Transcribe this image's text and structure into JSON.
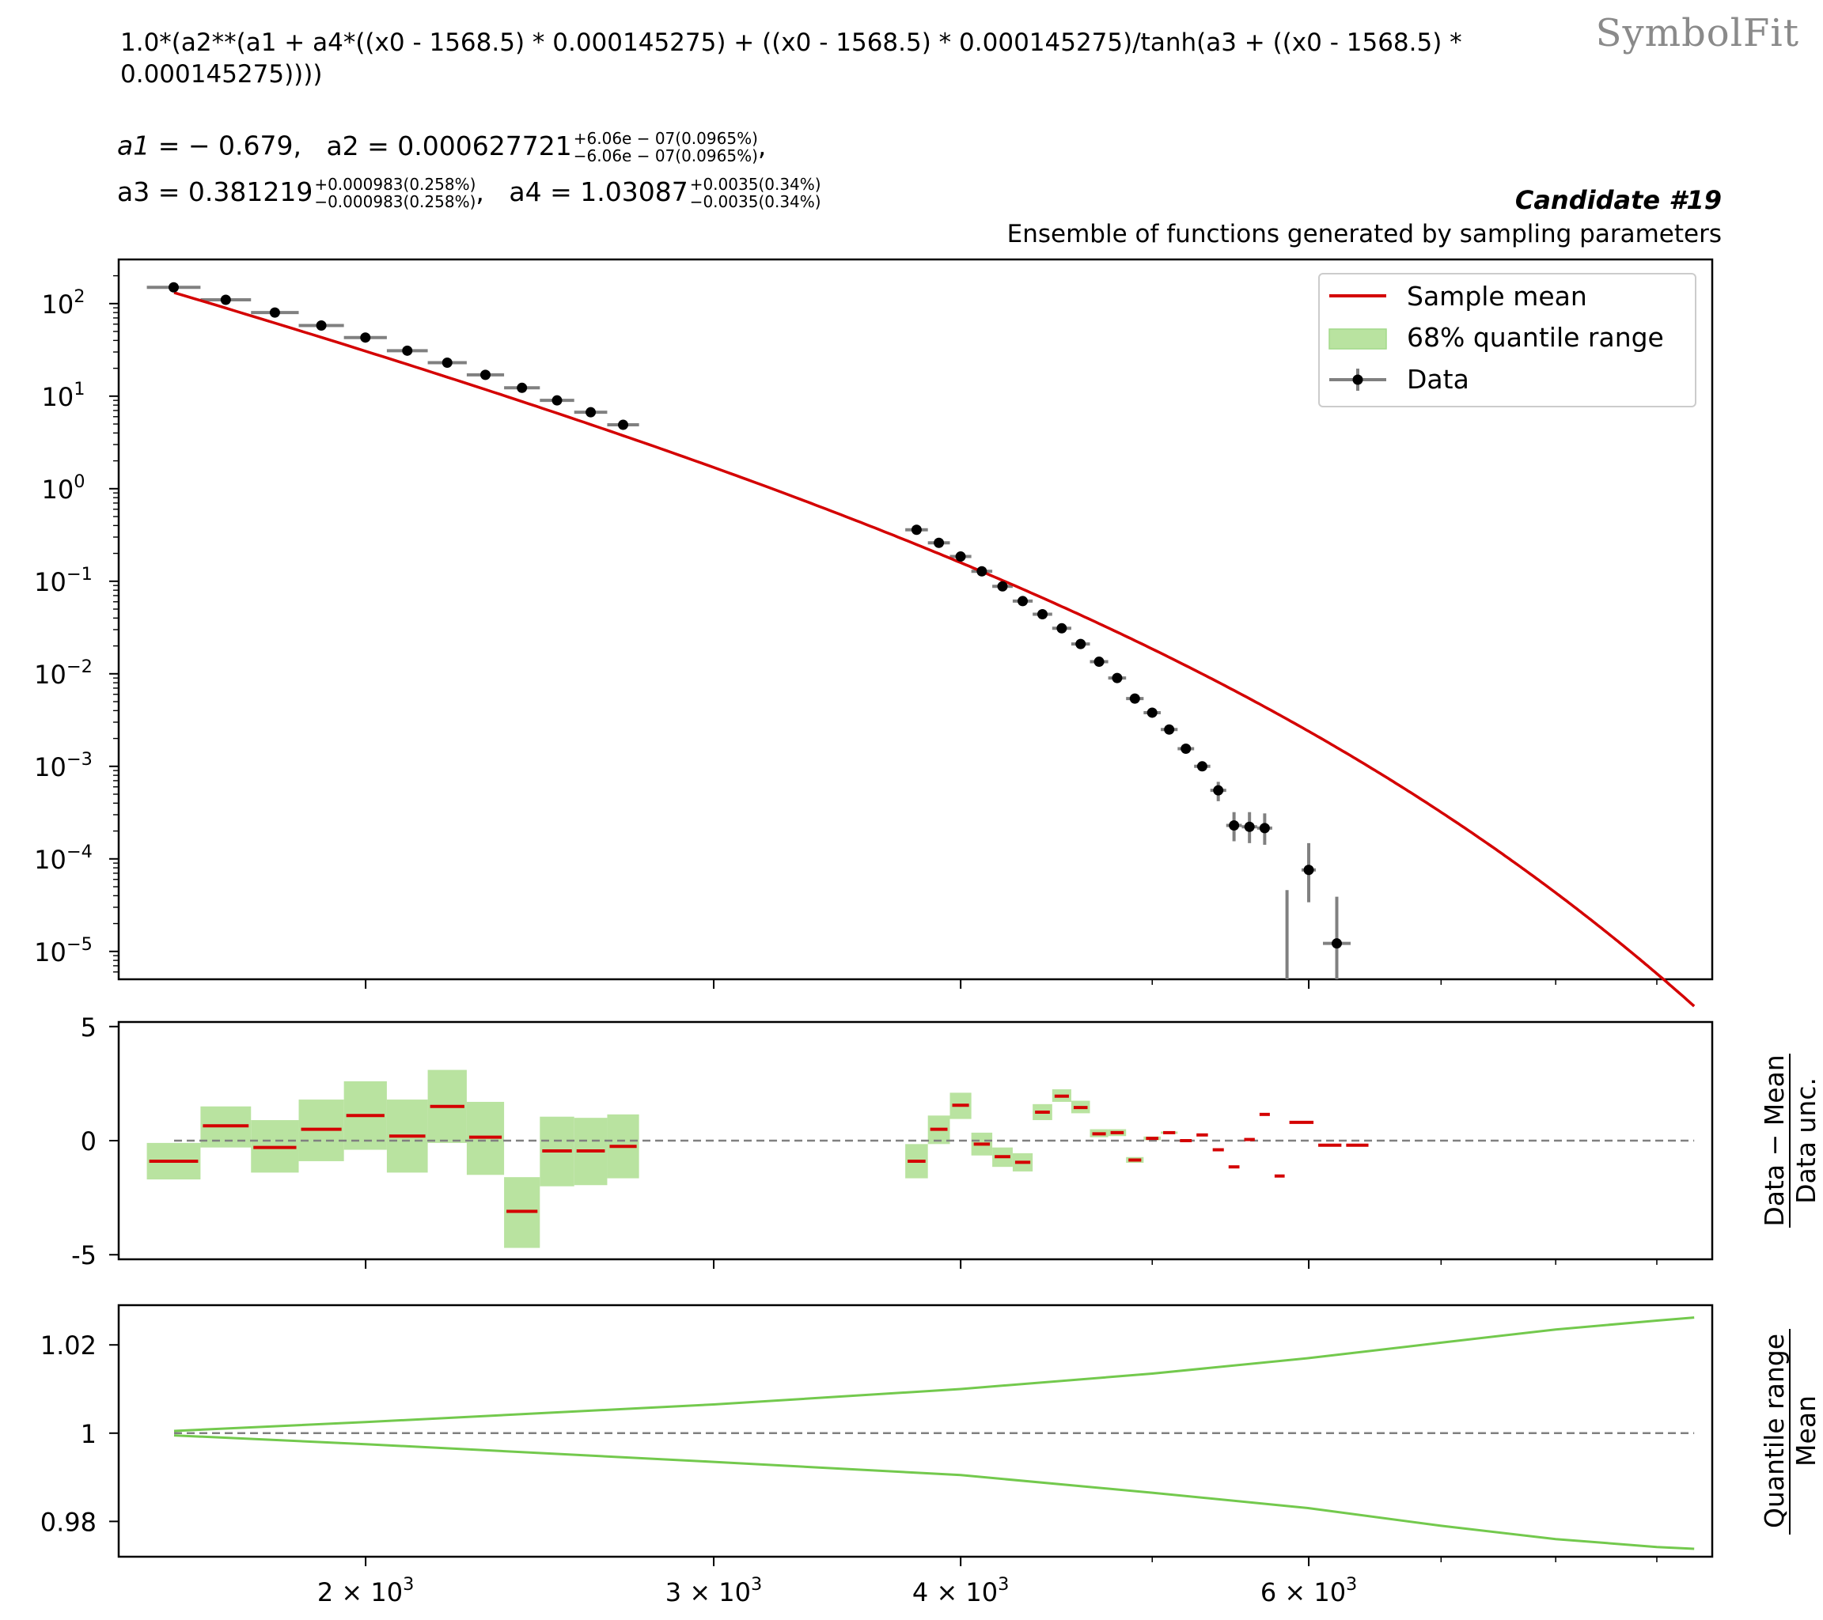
{
  "brand": "SymbolFit",
  "formula": "1.0*(a2**(a1 + a4*((x0 - 1568.5) * 0.000145275) + ((x0 - 1568.5) * 0.000145275)/tanh(a3 + ((x0 - 1568.5) * 0.000145275))))",
  "params": {
    "a1": {
      "label": "a1",
      "value": "= − 0.679,"
    },
    "a2": {
      "label": "a2",
      "value": "= 0.000627721",
      "up": "+6.06e − 07(0.0965%)",
      "down": "−6.06e − 07(0.0965%)",
      "tail": ","
    },
    "a3": {
      "label": "a3",
      "value": "= 0.381219",
      "up": "+0.000983(0.258%)",
      "down": "−0.000983(0.258%)",
      "tail": ","
    },
    "a4": {
      "label": "a4",
      "value": "= 1.03087",
      "up": "+0.0035(0.34%)",
      "down": "−0.0035(0.34%)"
    }
  },
  "candidate": "Candidate #19",
  "subtitle": "Ensemble of functions generated by sampling parameters",
  "colors": {
    "mean": "#d40000",
    "band": "#b9e3a0",
    "band_line": "#73c94d",
    "data": "#000000",
    "err": "#808080",
    "ref": "#808080"
  },
  "chart_data": [
    {
      "type": "scatter",
      "panel": "main",
      "xscale": "log",
      "yscale": "log",
      "xlim": [
        1500,
        9600
      ],
      "ylim": [
        5e-06,
        300
      ],
      "yticks": [
        100,
        10,
        1,
        0.1,
        0.01,
        0.001,
        0.0001,
        1e-05
      ],
      "ytick_labels": [
        [
          "10",
          "2"
        ],
        [
          "10",
          "1"
        ],
        [
          "10",
          "0"
        ],
        [
          "10",
          "−1"
        ],
        [
          "10",
          "−2"
        ],
        [
          "10",
          "−3"
        ],
        [
          "10",
          "−4"
        ],
        [
          "10",
          "−5"
        ]
      ],
      "legend": {
        "position": "top-right",
        "entries": [
          "Sample mean",
          "68% quantile range",
          "Data"
        ]
      },
      "fit": {
        "a1": -0.679,
        "a2": 0.000627721,
        "a3": 0.381219,
        "a4": 1.03087,
        "x_offset": 1568.5,
        "x_scale": 0.000145275,
        "x_range": [
          1600,
          9400
        ]
      },
      "data_points": [
        {
          "x0": 1550,
          "x1": 1650,
          "y": 150,
          "lo": 150,
          "hi": 150
        },
        {
          "x0": 1650,
          "x1": 1750,
          "y": 110,
          "lo": 110,
          "hi": 110
        },
        {
          "x0": 1750,
          "x1": 1850,
          "y": 80,
          "lo": 80,
          "hi": 80
        },
        {
          "x0": 1850,
          "x1": 1950,
          "y": 58,
          "lo": 58,
          "hi": 58
        },
        {
          "x0": 1950,
          "x1": 2050,
          "y": 43,
          "lo": 43,
          "hi": 43
        },
        {
          "x0": 2050,
          "x1": 2150,
          "y": 31,
          "lo": 31,
          "hi": 31
        },
        {
          "x0": 2150,
          "x1": 2250,
          "y": 23,
          "lo": 23,
          "hi": 23
        },
        {
          "x0": 2250,
          "x1": 2350,
          "y": 17,
          "lo": 17,
          "hi": 17
        },
        {
          "x0": 2350,
          "x1": 2450,
          "y": 12.3,
          "lo": 12.3,
          "hi": 12.3
        },
        {
          "x0": 2450,
          "x1": 2550,
          "y": 9.0,
          "lo": 9.0,
          "hi": 9.0
        },
        {
          "x0": 2550,
          "x1": 2650,
          "y": 6.7,
          "lo": 6.7,
          "hi": 6.7
        },
        {
          "x0": 2650,
          "x1": 2750,
          "y": 4.9,
          "lo": 4.9,
          "hi": 4.9
        },
        {
          "x0": 3750,
          "x1": 3850,
          "y": 0.36,
          "lo": 0.36,
          "hi": 0.36
        },
        {
          "x0": 3850,
          "x1": 3950,
          "y": 0.26,
          "lo": 0.26,
          "hi": 0.26
        },
        {
          "x0": 3950,
          "x1": 4050,
          "y": 0.185,
          "lo": 0.185,
          "hi": 0.185
        },
        {
          "x0": 4050,
          "x1": 4150,
          "y": 0.128,
          "lo": 0.128,
          "hi": 0.128
        },
        {
          "x0": 4150,
          "x1": 4250,
          "y": 0.088,
          "lo": 0.088,
          "hi": 0.088
        },
        {
          "x0": 4250,
          "x1": 4350,
          "y": 0.061,
          "lo": 0.061,
          "hi": 0.061
        },
        {
          "x0": 4350,
          "x1": 4450,
          "y": 0.044,
          "lo": 0.044,
          "hi": 0.044
        },
        {
          "x0": 4450,
          "x1": 4550,
          "y": 0.031,
          "lo": 0.031,
          "hi": 0.031
        },
        {
          "x0": 4550,
          "x1": 4650,
          "y": 0.021,
          "lo": 0.021,
          "hi": 0.021
        },
        {
          "x0": 4650,
          "x1": 4750,
          "y": 0.0135,
          "lo": 0.0135,
          "hi": 0.0135
        },
        {
          "x0": 4750,
          "x1": 4850,
          "y": 0.009,
          "lo": 0.009,
          "hi": 0.009
        },
        {
          "x0": 4850,
          "x1": 4950,
          "y": 0.0054,
          "lo": 0.0054,
          "hi": 0.0054
        },
        {
          "x0": 4950,
          "x1": 5050,
          "y": 0.0038,
          "lo": 0.0038,
          "hi": 0.0038
        },
        {
          "x0": 5050,
          "x1": 5150,
          "y": 0.0025,
          "lo": 0.0025,
          "hi": 0.0025
        },
        {
          "x0": 5150,
          "x1": 5250,
          "y": 0.00155,
          "lo": 0.00155,
          "hi": 0.00155
        },
        {
          "x0": 5250,
          "x1": 5350,
          "y": 0.001,
          "lo": 0.001,
          "hi": 0.001
        },
        {
          "x0": 5350,
          "x1": 5450,
          "y": 0.00055,
          "lo": 0.00042,
          "hi": 0.00068
        },
        {
          "x0": 5450,
          "x1": 5550,
          "y": 0.00023,
          "lo": 0.000155,
          "hi": 0.00032
        },
        {
          "x0": 5550,
          "x1": 5650,
          "y": 0.000222,
          "lo": 0.000148,
          "hi": 0.00032
        },
        {
          "x0": 5650,
          "x1": 5750,
          "y": 0.000215,
          "lo": 0.000142,
          "hi": 0.00031
        },
        {
          "x0": 5950,
          "x1": 6050,
          "y": 7.6e-05,
          "lo": 3.4e-05,
          "hi": 0.000148
        },
        {
          "x0": 6100,
          "x1": 6300,
          "y": 1.22e-05,
          "lo": 5e-06,
          "hi": 3.9e-05
        }
      ],
      "empty_bin_errors": [
        {
          "x": 5850,
          "hi": 4.6e-05
        }
      ]
    },
    {
      "type": "scatter",
      "panel": "residual",
      "ylabel_top": "Data − Mean",
      "ylabel_bottom": "Data unc.",
      "ylim": [
        -5.2,
        5.2
      ],
      "yticks": [
        5,
        0,
        -5
      ],
      "ytick_labels": [
        "5",
        "0",
        "-5"
      ],
      "bins": [
        {
          "x0": 1550,
          "x1": 1650,
          "mean": -0.9,
          "lo": -1.7,
          "hi": -0.1
        },
        {
          "x0": 1650,
          "x1": 1750,
          "mean": 0.65,
          "lo": -0.3,
          "hi": 1.5
        },
        {
          "x0": 1750,
          "x1": 1850,
          "mean": -0.3,
          "lo": -1.4,
          "hi": 0.9
        },
        {
          "x0": 1850,
          "x1": 1950,
          "mean": 0.5,
          "lo": -0.9,
          "hi": 1.8
        },
        {
          "x0": 1950,
          "x1": 2050,
          "mean": 1.1,
          "lo": -0.4,
          "hi": 2.6
        },
        {
          "x0": 2050,
          "x1": 2150,
          "mean": 0.2,
          "lo": -1.4,
          "hi": 1.8
        },
        {
          "x0": 2150,
          "x1": 2250,
          "mean": 1.5,
          "lo": -0.1,
          "hi": 3.1
        },
        {
          "x0": 2250,
          "x1": 2350,
          "mean": 0.15,
          "lo": -1.5,
          "hi": 1.7
        },
        {
          "x0": 2350,
          "x1": 2450,
          "mean": -3.1,
          "lo": -4.7,
          "hi": -1.6
        },
        {
          "x0": 2450,
          "x1": 2550,
          "mean": -0.45,
          "lo": -2.0,
          "hi": 1.05
        },
        {
          "x0": 2550,
          "x1": 2650,
          "mean": -0.45,
          "lo": -1.95,
          "hi": 1.0
        },
        {
          "x0": 2650,
          "x1": 2750,
          "mean": -0.25,
          "lo": -1.65,
          "hi": 1.15
        },
        {
          "x0": 3750,
          "x1": 3850,
          "mean": -0.9,
          "lo": -1.65,
          "hi": -0.15
        },
        {
          "x0": 3850,
          "x1": 3950,
          "mean": 0.5,
          "lo": -0.15,
          "hi": 1.1
        },
        {
          "x0": 3950,
          "x1": 4050,
          "mean": 1.55,
          "lo": 0.95,
          "hi": 2.1
        },
        {
          "x0": 4050,
          "x1": 4150,
          "mean": -0.15,
          "lo": -0.65,
          "hi": 0.35
        },
        {
          "x0": 4150,
          "x1": 4250,
          "mean": -0.7,
          "lo": -1.15,
          "hi": -0.3
        },
        {
          "x0": 4250,
          "x1": 4350,
          "mean": -0.95,
          "lo": -1.35,
          "hi": -0.55
        },
        {
          "x0": 4350,
          "x1": 4450,
          "mean": 1.25,
          "lo": 0.9,
          "hi": 1.6
        },
        {
          "x0": 4450,
          "x1": 4550,
          "mean": 1.95,
          "lo": 1.7,
          "hi": 2.25
        },
        {
          "x0": 4550,
          "x1": 4650,
          "mean": 1.45,
          "lo": 1.2,
          "hi": 1.75
        },
        {
          "x0": 4650,
          "x1": 4750,
          "mean": 0.3,
          "lo": 0.15,
          "hi": 0.5
        },
        {
          "x0": 4750,
          "x1": 4850,
          "mean": 0.35,
          "lo": 0.2,
          "hi": 0.5
        },
        {
          "x0": 4850,
          "x1": 4950,
          "mean": -0.85,
          "lo": -0.97,
          "hi": -0.72
        },
        {
          "x0": 4950,
          "x1": 5050,
          "mean": 0.1,
          "lo": 0.02,
          "hi": 0.18
        },
        {
          "x0": 5050,
          "x1": 5150,
          "mean": 0.35,
          "lo": 0.3,
          "hi": 0.4
        },
        {
          "x0": 5150,
          "x1": 5250,
          "mean": 0.0,
          "lo": 0.0,
          "hi": 0.0
        },
        {
          "x0": 5250,
          "x1": 5350,
          "mean": 0.25,
          "lo": 0.25,
          "hi": 0.25
        },
        {
          "x0": 5350,
          "x1": 5450,
          "mean": -0.4,
          "lo": -0.4,
          "hi": -0.4
        },
        {
          "x0": 5450,
          "x1": 5550,
          "mean": -1.15,
          "lo": -1.15,
          "hi": -1.15
        },
        {
          "x0": 5550,
          "x1": 5650,
          "mean": 0.05,
          "lo": 0.05,
          "hi": 0.05
        },
        {
          "x0": 5650,
          "x1": 5750,
          "mean": 1.15,
          "lo": 1.15,
          "hi": 1.15
        },
        {
          "x0": 5750,
          "x1": 5850,
          "mean": -1.55,
          "lo": -1.55,
          "hi": -1.55
        },
        {
          "x0": 5850,
          "x1": 6050,
          "mean": 0.8,
          "lo": 0.8,
          "hi": 0.8
        },
        {
          "x0": 6050,
          "x1": 6250,
          "mean": -0.2,
          "lo": -0.2,
          "hi": -0.2
        },
        {
          "x0": 6250,
          "x1": 6450,
          "mean": -0.2,
          "lo": -0.2,
          "hi": -0.2
        }
      ]
    },
    {
      "type": "line",
      "panel": "quantile",
      "ylabel_top": "Quantile range",
      "ylabel_bottom": "Mean",
      "ylim": [
        0.972,
        1.029
      ],
      "yticks": [
        1.02,
        1,
        0.98
      ],
      "ytick_labels": [
        "1.02",
        "1",
        "0.98"
      ],
      "xticks": [
        2000,
        3000,
        4000,
        6000
      ],
      "xtick_labels": [
        [
          "2 × 10",
          "3"
        ],
        [
          "3 × 10",
          "3"
        ],
        [
          "4 × 10",
          "3"
        ],
        [
          "6 × 10",
          "3"
        ]
      ],
      "x_minor_ticks": [
        5000,
        7000,
        8000,
        9000
      ],
      "upper": {
        "x": [
          1600,
          2000,
          3000,
          4000,
          5000,
          6000,
          7000,
          8000,
          9000,
          9400
        ],
        "y": [
          1.0005,
          1.0025,
          1.0065,
          1.01,
          1.0135,
          1.017,
          1.0205,
          1.0235,
          1.0255,
          1.0262
        ]
      },
      "lower": {
        "x": [
          1600,
          2000,
          3000,
          4000,
          5000,
          6000,
          7000,
          8000,
          9000,
          9400
        ],
        "y": [
          0.9995,
          0.9975,
          0.9935,
          0.9905,
          0.9865,
          0.983,
          0.979,
          0.976,
          0.9742,
          0.9738
        ]
      }
    }
  ]
}
